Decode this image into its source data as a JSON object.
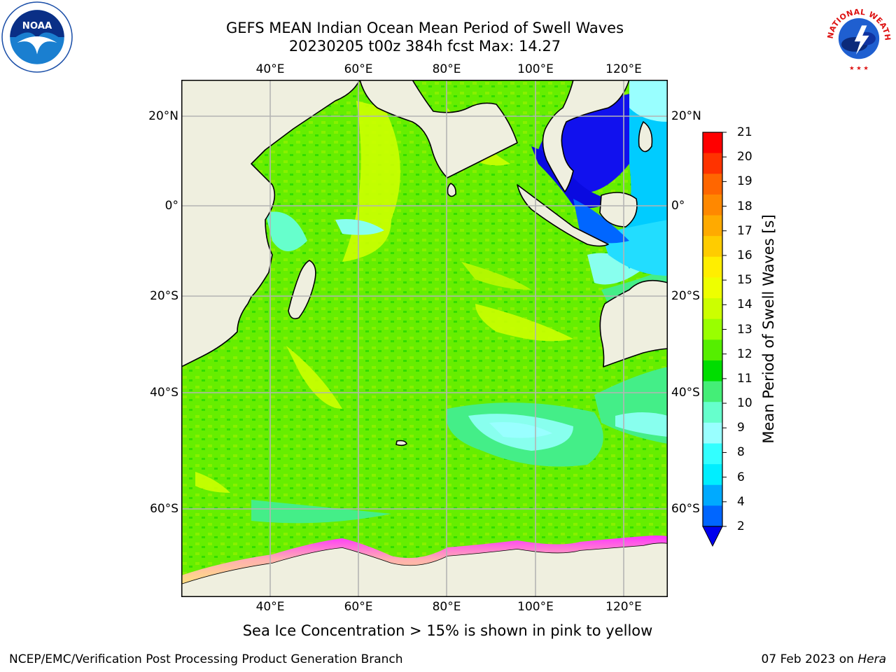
{
  "title": {
    "line1": "GEFS MEAN Indian Ocean Mean Period of Swell Waves",
    "line2": "20230205 t00z 384h fcst   Max: 14.27"
  },
  "logos": {
    "left": {
      "icon": "noaa-logo",
      "text": "NOAA"
    },
    "right": {
      "icon": "nws-logo",
      "text": "NATIONAL WEATHER SERVICE"
    }
  },
  "map": {
    "lon_ticks": [
      "40°E",
      "60°E",
      "80°E",
      "100°E",
      "120°E"
    ],
    "lat_ticks_left": [
      "20°N",
      "0°",
      "20°S",
      "40°S",
      "60°S"
    ],
    "lat_ticks_right": [
      "20°N",
      "0°",
      "20°S",
      "40°S",
      "60°S"
    ],
    "lon_range": [
      20,
      130
    ],
    "lat_range": [
      -72,
      26
    ],
    "land_color": "#efefdf",
    "ice_colors": [
      "#ff33ff",
      "#ffb0b0",
      "#ffe080"
    ]
  },
  "colorbar": {
    "title": "Mean Period of Swell Waves [s]",
    "labels": [
      "21",
      "20",
      "19",
      "18",
      "17",
      "16",
      "15",
      "14",
      "13",
      "12",
      "11",
      "10",
      "9",
      "8",
      "6",
      "4",
      "2"
    ],
    "colors": [
      "#ff0000",
      "#ff3300",
      "#ff6600",
      "#ff8800",
      "#ffaa00",
      "#ffcc00",
      "#ffee00",
      "#eeff00",
      "#ccff00",
      "#99ff00",
      "#55ee00",
      "#00dd00",
      "#44ee77",
      "#66ffcc",
      "#99ffff",
      "#33ffff",
      "#00eeff",
      "#00aaff",
      "#0066ff"
    ],
    "under_color": "#0000ee"
  },
  "note": "Sea Ice Concentration > 15% is shown in pink to yellow",
  "footer": {
    "left": "NCEP/EMC/Verification Post Processing Product Generation Branch",
    "right_prefix": "07 Feb 2023 on ",
    "right_host": "Hera"
  }
}
